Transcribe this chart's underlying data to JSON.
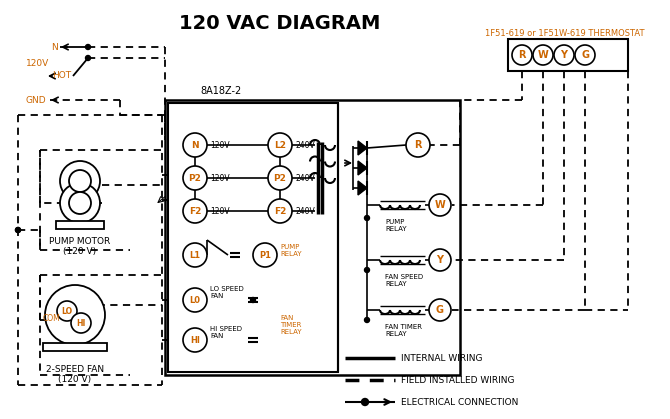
{
  "title": "120 VAC DIAGRAM",
  "bg_color": "#ffffff",
  "line_color": "#000000",
  "orange_color": "#cc6600",
  "thermostat_label": "1F51-619 or 1F51W-619 THERMOSTAT",
  "control_board_label": "8A18Z-2",
  "terminal_labels": [
    "R",
    "W",
    "Y",
    "G"
  ],
  "left_circles_labels": [
    "N",
    "P2",
    "F2"
  ],
  "right_circles_labels": [
    "L2",
    "P2",
    "F2"
  ],
  "left_voltages": [
    "120V",
    "120V",
    "120V"
  ],
  "right_voltages": [
    "240V",
    "240V",
    "240V"
  ],
  "pump_motor_label": "PUMP MOTOR\n(120 V)",
  "fan_label": "2-SPEED FAN\n(120 V)"
}
